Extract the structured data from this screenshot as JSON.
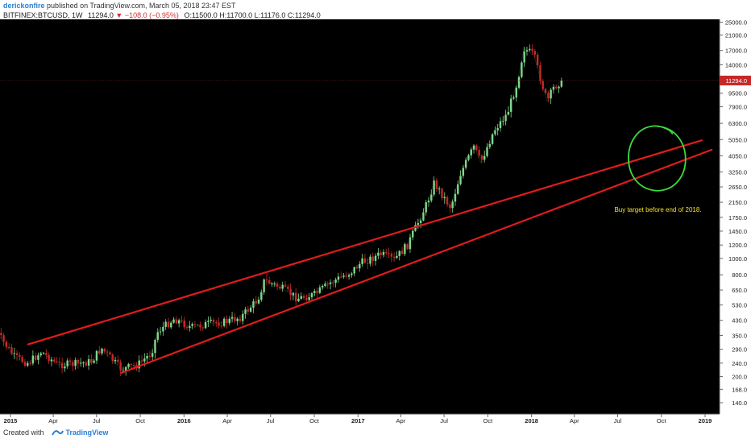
{
  "header": {
    "author": "derickonfire",
    "published": "published on TradingView.com, March 05, 2018 23:47 EST",
    "symbol": "BITFINEX:BTCUSD, 1W",
    "price": "11294.0",
    "change": "−108.0 (−0.95%)",
    "ohlc": "O:11500.0 H:11700.0 L:11176.0 C:11294.0"
  },
  "footer": {
    "created_with": "Created with",
    "brand": "TradingView"
  },
  "colors": {
    "background": "#000000",
    "up": "#7ed88a",
    "down": "#c62828",
    "trendline": "#e01c1c",
    "circle": "#3ddc3d",
    "annotation": "#f5e52a"
  },
  "chart_data": {
    "type": "candlestick",
    "symbol": "BITFINEX:BTCUSD",
    "interval": "1W",
    "y_scale": "log",
    "ylim": [
      120,
      26000
    ],
    "y_ticks": [
      140.0,
      168.0,
      200.0,
      240.0,
      290.0,
      350.0,
      430.0,
      530.0,
      650.0,
      800.0,
      1000.0,
      1200.0,
      1450.0,
      1750.0,
      2150.0,
      2650.0,
      3250.0,
      4050.0,
      5050.0,
      6300.0,
      7900.0,
      9500.0,
      11294.0,
      14000.0,
      17000.0,
      21000.0,
      25000.0
    ],
    "x_ticks": [
      "2015",
      "Apr",
      "Jul",
      "Oct",
      "2016",
      "Apr",
      "Jul",
      "Oct",
      "2017",
      "Apr",
      "Jul",
      "Oct",
      "2018",
      "Apr",
      "Jul",
      "Oct",
      "2019"
    ],
    "x_tick_dates": [
      "2015-01-01",
      "2015-04-01",
      "2015-07-01",
      "2015-10-01",
      "2016-01-01",
      "2016-04-01",
      "2016-07-01",
      "2016-10-01",
      "2017-01-01",
      "2017-04-01",
      "2017-07-01",
      "2017-10-01",
      "2018-01-01",
      "2018-04-01",
      "2018-07-01",
      "2018-10-01",
      "2019-01-01"
    ],
    "last_price": 11294.0,
    "price_series": [
      [
        "2014-12-01",
        370
      ],
      [
        "2015-01-10",
        260
      ],
      [
        "2015-02-07",
        240
      ],
      [
        "2015-03-07",
        280
      ],
      [
        "2015-04-11",
        235
      ],
      [
        "2015-05-16",
        237
      ],
      [
        "2015-06-20",
        245
      ],
      [
        "2015-07-11",
        295
      ],
      [
        "2015-08-22",
        220
      ],
      [
        "2015-09-26",
        235
      ],
      [
        "2015-10-24",
        275
      ],
      [
        "2015-11-07",
        370
      ],
      [
        "2015-12-12",
        440
      ],
      [
        "2016-01-16",
        390
      ],
      [
        "2016-02-20",
        410
      ],
      [
        "2016-03-26",
        420
      ],
      [
        "2016-04-30",
        450
      ],
      [
        "2016-06-04",
        570
      ],
      [
        "2016-06-18",
        740
      ],
      [
        "2016-07-23",
        670
      ],
      [
        "2016-08-27",
        580
      ],
      [
        "2016-10-01",
        610
      ],
      [
        "2016-11-05",
        720
      ],
      [
        "2016-12-17",
        830
      ],
      [
        "2017-01-07",
        940
      ],
      [
        "2017-02-18",
        1060
      ],
      [
        "2017-03-18",
        980
      ],
      [
        "2017-04-15",
        1200
      ],
      [
        "2017-05-06",
        1600
      ],
      [
        "2017-05-27",
        2150
      ],
      [
        "2017-06-10",
        2800
      ],
      [
        "2017-07-15",
        2000
      ],
      [
        "2017-08-05",
        3200
      ],
      [
        "2017-09-02",
        4600
      ],
      [
        "2017-09-16",
        3700
      ],
      [
        "2017-10-14",
        5700
      ],
      [
        "2017-11-11",
        7200
      ],
      [
        "2017-12-02",
        11000
      ],
      [
        "2017-12-16",
        17500
      ],
      [
        "2018-01-06",
        16000
      ],
      [
        "2018-01-20",
        11500
      ],
      [
        "2018-02-03",
        8500
      ],
      [
        "2018-02-17",
        10300
      ],
      [
        "2018-03-05",
        11294
      ]
    ],
    "annotations": [
      {
        "type": "trendline",
        "color": "#e01c1c",
        "from": [
          "2015-02-07",
          310
        ],
        "to": [
          "2018-12-25",
          5000
        ]
      },
      {
        "type": "trendline",
        "color": "#e01c1c",
        "from": [
          "2015-08-22",
          210
        ],
        "to": [
          "2019-01-15",
          4400
        ]
      },
      {
        "type": "ellipse",
        "color": "#3ddc3d",
        "center": [
          "2018-09-20",
          3900
        ]
      },
      {
        "type": "text",
        "color": "#f5e52a",
        "text": "Buy target before end of 2018.",
        "at": [
          "2018-07-01",
          1950
        ]
      }
    ]
  }
}
